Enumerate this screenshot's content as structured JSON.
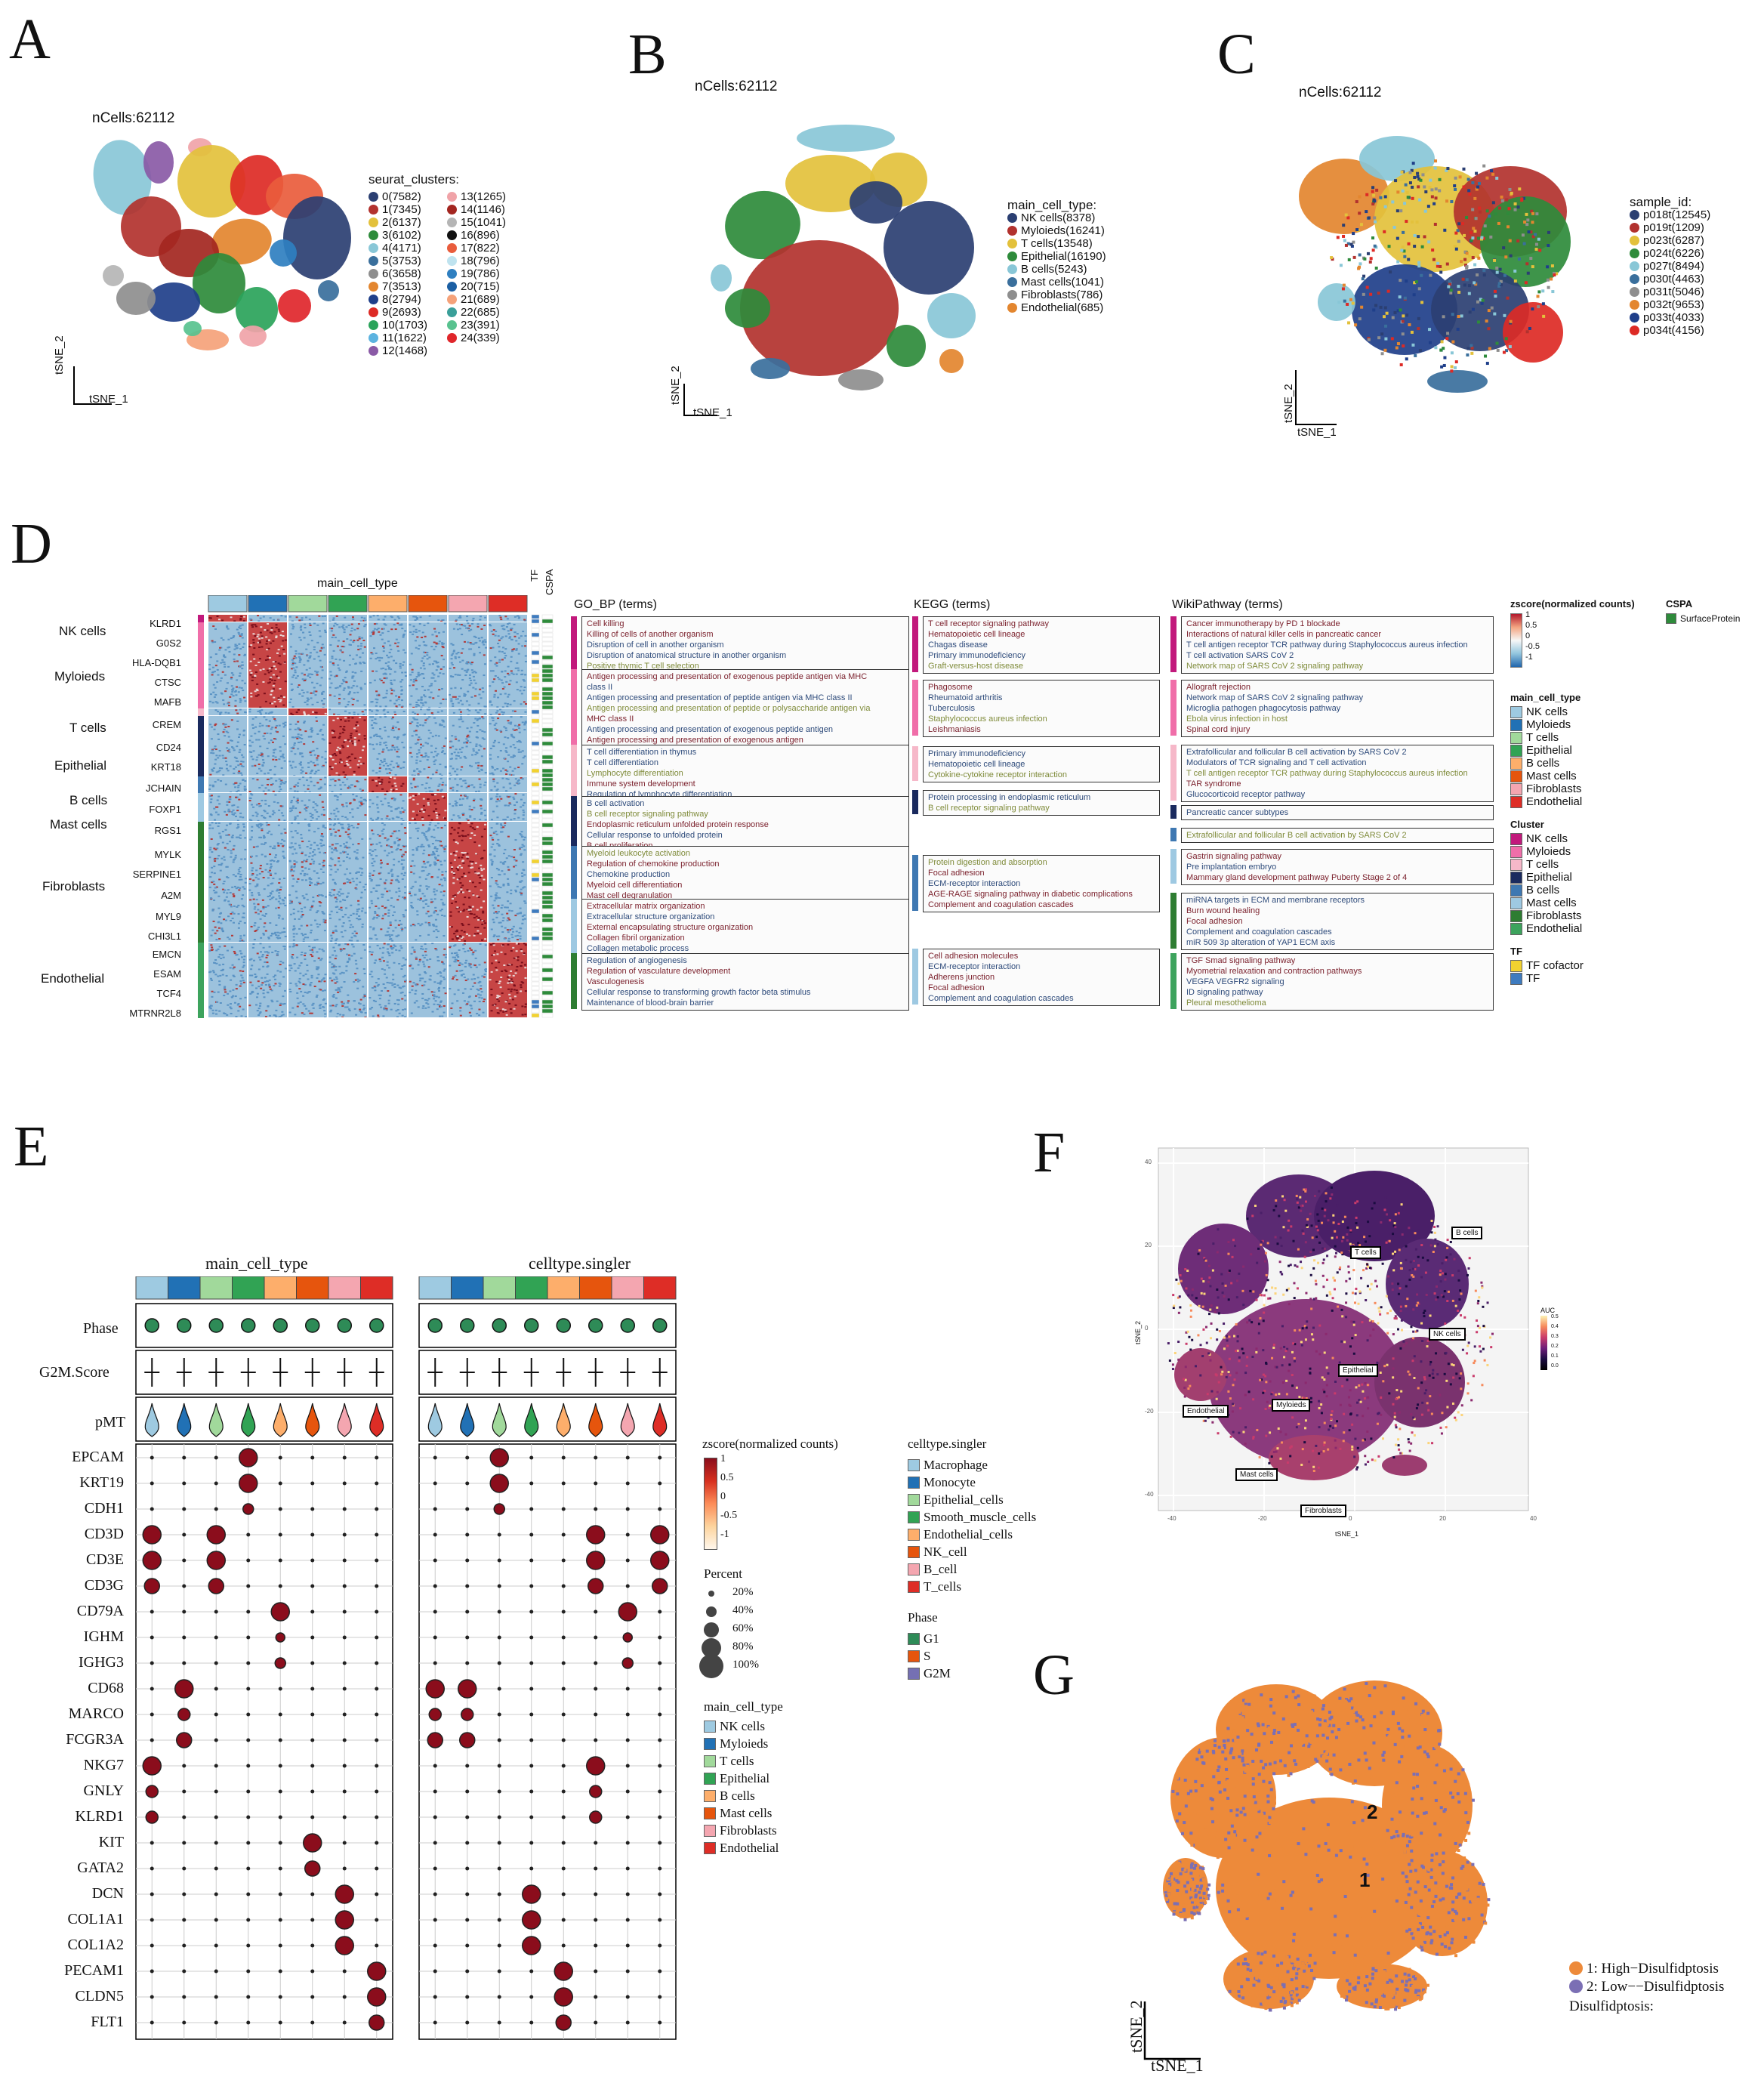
{
  "panels": {
    "a": "A",
    "b": "B",
    "c": "C",
    "d": "D",
    "e": "E",
    "f": "F",
    "g": "G"
  },
  "panel_a": {
    "ncells": "nCells:62112",
    "axis_x": "tSNE_1",
    "axis_y": "tSNE_2",
    "legend_title": "seurat_clusters:",
    "legend": [
      {
        "label": "0(7582)",
        "color": "#2b3f72"
      },
      {
        "label": "1(7345)",
        "color": "#b2322e"
      },
      {
        "label": "2(6137)",
        "color": "#e3c13c"
      },
      {
        "label": "3(6102)",
        "color": "#2e8b3b"
      },
      {
        "label": "4(4171)",
        "color": "#89c7d7"
      },
      {
        "label": "5(3753)",
        "color": "#3a6f9c"
      },
      {
        "label": "6(3658)",
        "color": "#8e8e8e"
      },
      {
        "label": "7(3513)",
        "color": "#e3862f"
      },
      {
        "label": "8(2794)",
        "color": "#1f3f8a"
      },
      {
        "label": "9(2693)",
        "color": "#dd2a25"
      },
      {
        "label": "10(1703)",
        "color": "#2aa35a"
      },
      {
        "label": "11(1622)",
        "color": "#5cb3e0"
      },
      {
        "label": "12(1468)",
        "color": "#8a5aa6"
      },
      {
        "label": "13(1265)",
        "color": "#f0a3a8"
      },
      {
        "label": "14(1146)",
        "color": "#a32620"
      },
      {
        "label": "15(1041)",
        "color": "#b5b5b5"
      },
      {
        "label": "16(896)",
        "color": "#111111"
      },
      {
        "label": "17(822)",
        "color": "#e95c3c"
      },
      {
        "label": "18(796)",
        "color": "#bfe3ef"
      },
      {
        "label": "19(786)",
        "color": "#2f7fc0"
      },
      {
        "label": "20(715)",
        "color": "#1b5fa3"
      },
      {
        "label": "21(689)",
        "color": "#f5a27a"
      },
      {
        "label": "22(685)",
        "color": "#3a9f99"
      },
      {
        "label": "23(391)",
        "color": "#58c28f"
      },
      {
        "label": "24(339)",
        "color": "#e0262b"
      }
    ]
  },
  "panel_b": {
    "ncells": "nCells:62112",
    "axis_x": "tSNE_1",
    "axis_y": "tSNE_2",
    "legend_title": "main_cell_type:",
    "legend": [
      {
        "label": "NK cells(8378)",
        "color": "#2b3f72"
      },
      {
        "label": "Myloieds(16241)",
        "color": "#b2322e"
      },
      {
        "label": "T cells(13548)",
        "color": "#e3c13c"
      },
      {
        "label": "Epithelial(16190)",
        "color": "#2e8b3b"
      },
      {
        "label": "B cells(5243)",
        "color": "#89c7d7"
      },
      {
        "label": "Mast cells(1041)",
        "color": "#3a6f9c"
      },
      {
        "label": "Fibroblasts(786)",
        "color": "#8e8e8e"
      },
      {
        "label": "Endothelial(685)",
        "color": "#e3862f"
      }
    ]
  },
  "panel_c": {
    "ncells": "nCells:62112",
    "axis_x": "tSNE_1",
    "axis_y": "tSNE_2",
    "legend_title": "sample_id:",
    "legend": [
      {
        "label": "p018t(12545)",
        "color": "#2b3f72"
      },
      {
        "label": "p019t(1209)",
        "color": "#b2322e"
      },
      {
        "label": "p023t(6287)",
        "color": "#e3c13c"
      },
      {
        "label": "p024t(6226)",
        "color": "#2e8b3b"
      },
      {
        "label": "p027t(8494)",
        "color": "#89c7d7"
      },
      {
        "label": "p030t(4463)",
        "color": "#3a6f9c"
      },
      {
        "label": "p031t(5046)",
        "color": "#8e8e8e"
      },
      {
        "label": "p032t(9653)",
        "color": "#e3862f"
      },
      {
        "label": "p033t(4033)",
        "color": "#1f3f8a"
      },
      {
        "label": "p034t(4156)",
        "color": "#dd2a25"
      }
    ]
  },
  "panel_d": {
    "heatmap_title": "main_cell_type",
    "col_tf": "TF",
    "col_cspa": "CSPA",
    "col_colors": [
      "#9ecae1",
      "#2171b5",
      "#a1d99b",
      "#31a354",
      "#fdae6b",
      "#e6550d",
      "#f4a6b0",
      "#de2d26"
    ],
    "groups": [
      "NK cells",
      "Myloieds",
      "T cells",
      "Epithelial",
      "B cells",
      "Mast cells",
      "Fibroblasts",
      "Endothelial"
    ],
    "genes": [
      "KLRD1",
      "G0S2",
      "HLA-DQB1",
      "CTSC",
      "MAFB",
      "CREM",
      "CD24",
      "KRT18",
      "JCHAIN",
      "FOXP1",
      "RGS1",
      "MYLK",
      "SERPINE1",
      "A2M",
      "MYL9",
      "CHI3L1",
      "EMCN",
      "ESAM",
      "TCF4",
      "MTRNR2L8"
    ],
    "go_title": "GO_BP (terms)",
    "kegg_title": "KEGG (terms)",
    "wiki_title": "WikiPathway (terms)",
    "go_boxes": [
      [
        "Cell killing",
        "Killing of cells of another organism",
        "Disruption of cell in another organism",
        "Disruption of anatomical structure in another organism",
        "Positive thymic T cell selection"
      ],
      [
        "Antigen processing and presentation of exogenous peptide antigen via MHC",
        "class II",
        "Antigen processing and presentation of peptide antigen via MHC class II",
        "Antigen processing and presentation of peptide or polysaccharide antigen via",
        "MHC class II",
        "Antigen processing and presentation of exogenous peptide antigen",
        "Antigen processing and presentation of exogenous antigen"
      ],
      [
        "T cell differentiation in thymus",
        "T cell differentiation",
        "Lymphocyte differentiation",
        "Immune system development",
        "Regulation of lymphocyte differentiation"
      ],
      [
        "B cell activation",
        "B cell receptor signaling pathway",
        "Endoplasmic reticulum unfolded protein response",
        "Cellular response to unfolded protein",
        "B cell proliferation"
      ],
      [
        "Myeloid leukocyte activation",
        "Regulation of chemokine production",
        "Chemokine production",
        "Myeloid cell differentiation",
        "Mast cell degranulation"
      ],
      [
        "Extracellular matrix organization",
        "Extracellular structure organization",
        "External encapsulating structure organization",
        "Collagen fibril organization",
        "Collagen metabolic process"
      ],
      [
        "Regulation of angiogenesis",
        "Regulation of vasculature development",
        "Vasculogenesis",
        "Cellular response to transforming growth factor beta stimulus",
        "Maintenance of blood-brain barrier"
      ]
    ],
    "kegg_boxes": [
      [
        "T cell receptor signaling pathway",
        "Hematopoietic cell lineage",
        "Chagas disease",
        "Primary immunodeficiency",
        "Graft-versus-host disease"
      ],
      [
        "Phagosome",
        "Rheumatoid arthritis",
        "Tuberculosis",
        "Staphylococcus aureus infection",
        "Leishmaniasis"
      ],
      [
        "Primary immunodeficiency",
        "Hematopoietic cell lineage",
        "Cytokine-cytokine receptor interaction"
      ],
      [
        "Protein processing in endoplasmic reticulum",
        "B cell receptor signaling pathway"
      ],
      [
        "Protein digestion and absorption",
        "Focal adhesion",
        "ECM-receptor interaction",
        "AGE-RAGE signaling pathway in diabetic complications",
        "Complement and coagulation cascades"
      ],
      [
        "Cell adhesion molecules",
        "ECM-receptor interaction",
        "Adherens junction",
        "Focal adhesion",
        "Complement and coagulation cascades"
      ]
    ],
    "wiki_boxes": [
      [
        "Cancer immunotherapy by PD 1 blockade",
        "Interactions of natural killer cells in pancreatic cancer",
        "T cell antigen receptor TCR pathway during Staphylococcus aureus infection",
        "T cell activation SARS CoV 2",
        "Network map of SARS CoV 2 signaling pathway"
      ],
      [
        "Allograft rejection",
        "Network map of SARS CoV 2 signaling pathway",
        "Microglia pathogen phagocytosis pathway",
        "Ebola virus infection in host",
        "Spinal cord injury"
      ],
      [
        "Extrafollicular and follicular B cell activation by SARS CoV 2",
        "Modulators of TCR signaling and T cell activation",
        "T cell antigen receptor TCR pathway during Staphylococcus aureus infection",
        "TAR syndrome",
        "Glucocorticoid receptor pathway"
      ],
      [
        "Pancreatic cancer subtypes"
      ],
      [
        "Extrafollicular and follicular B cell activation by SARS CoV 2"
      ],
      [
        "Gastrin signaling pathway",
        "Pre implantation embryo",
        "Mammary gland development pathway Puberty Stage 2 of 4"
      ],
      [
        "miRNA targets in ECM and membrane receptors",
        "Burn wound healing",
        "Focal adhesion",
        "Complement and coagulation cascades",
        "miR 509 3p alteration of YAP1 ECM axis"
      ],
      [
        "TGF Smad signaling pathway",
        "Myometrial relaxation and contraction pathways",
        "VEGFA VEGFR2 signaling",
        "ID signaling pathway",
        "Pleural mesothelioma"
      ]
    ],
    "legend_zscore_title": "zscore(normalized counts)",
    "legend_zscore_ticks": [
      "1",
      "0.5",
      "0",
      "-0.5",
      "-1"
    ],
    "legend_cspa_title": "CSPA",
    "legend_cspa_item": "SurfaceProtein",
    "legend_main_title": "main_cell_type",
    "legend_main": [
      "NK cells",
      "Myloieds",
      "T cells",
      "Epithelial",
      "B cells",
      "Mast cells",
      "Fibroblasts",
      "Endothelial"
    ],
    "legend_cluster_title": "Cluster",
    "legend_cluster": [
      "NK cells",
      "Myloieds",
      "T cells",
      "Epithelial",
      "B cells",
      "Mast cells",
      "Fibroblasts",
      "Endothelial"
    ],
    "legend_cluster_colors": [
      "#c2197c",
      "#f06ea9",
      "#f6b8c9",
      "#1a2a5e",
      "#3e78b2",
      "#9ec9e2",
      "#2e7d32",
      "#3da35d"
    ],
    "legend_tf_title": "TF",
    "legend_tf": [
      {
        "label": "TF cofactor",
        "color": "#f2d230"
      },
      {
        "label": "TF",
        "color": "#3e7bbf"
      }
    ]
  },
  "panel_e": {
    "title_left": "main_cell_type",
    "title_right": "celltype.singler",
    "row_phase": "Phase",
    "row_g2m": "G2M.Score",
    "row_pmt": "pMT",
    "genes": [
      "EPCAM",
      "KRT19",
      "CDH1",
      "CD3D",
      "CD3E",
      "CD3G",
      "CD79A",
      "IGHM",
      "IGHG3",
      "CD68",
      "MARCO",
      "FCGR3A",
      "NKG7",
      "GNLY",
      "KLRD1",
      "KIT",
      "GATA2",
      "DCN",
      "COL1A1",
      "COL1A2",
      "PECAM1",
      "CLDN5",
      "FLT1"
    ],
    "col_colors": [
      "#9ecae1",
      "#2171b5",
      "#a1d99b",
      "#31a354",
      "#fdae6b",
      "#e6550d",
      "#f4a6b0",
      "#de2d26"
    ],
    "legend_z_title": "zscore(normalized counts)",
    "legend_z_ticks": [
      "1",
      "0.5",
      "0",
      "-0.5",
      "-1"
    ],
    "legend_pct_title": "Percent",
    "legend_pct": [
      "20%",
      "40%",
      "60%",
      "80%",
      "100%"
    ],
    "legend_main_title": "main_cell_type",
    "legend_main": [
      "NK cells",
      "Myloieds",
      "T cells",
      "Epithelial",
      "B cells",
      "Mast cells",
      "Fibroblasts",
      "Endothelial"
    ],
    "legend_singler_title": "celltype.singler",
    "legend_singler": [
      "Macrophage",
      "Monocyte",
      "Epithelial_cells",
      "Smooth_muscle_cells",
      "Endothelial_cells",
      "NK_cell",
      "B_cell",
      "T_cells"
    ],
    "legend_phase_title": "Phase",
    "legend_phase": [
      {
        "label": "G1",
        "color": "#2e8b57"
      },
      {
        "label": "S",
        "color": "#e6550d"
      },
      {
        "label": "G2M",
        "color": "#7570b3"
      }
    ]
  },
  "panel_f": {
    "axis_x": "tSNE_1",
    "axis_y": "tSNE_2",
    "x_ticks": [
      "-40",
      "-20",
      "0",
      "20",
      "40"
    ],
    "y_ticks": [
      "40",
      "20",
      "0",
      "-20",
      "-40"
    ],
    "legend_title": "AUC",
    "legend_ticks": [
      "0.5",
      "0.4",
      "0.3",
      "0.2",
      "0.1",
      "0.0"
    ],
    "labels": [
      "B cells",
      "T cells",
      "NK cells",
      "Epithelial",
      "Endothelial",
      "Myloieds",
      "Mast cells",
      "Fibroblasts"
    ]
  },
  "panel_g": {
    "axis_x": "tSNE_1",
    "axis_y": "tSNE_2",
    "label_1": "1",
    "label_2": "2",
    "legend": [
      {
        "label": "1: High−Disulfidptosis",
        "color": "#ed8a3a"
      },
      {
        "label": "2: Low−−Disulfidptosis",
        "color": "#7b6fb4"
      }
    ],
    "legend_title": "Disulfidptosis:"
  }
}
